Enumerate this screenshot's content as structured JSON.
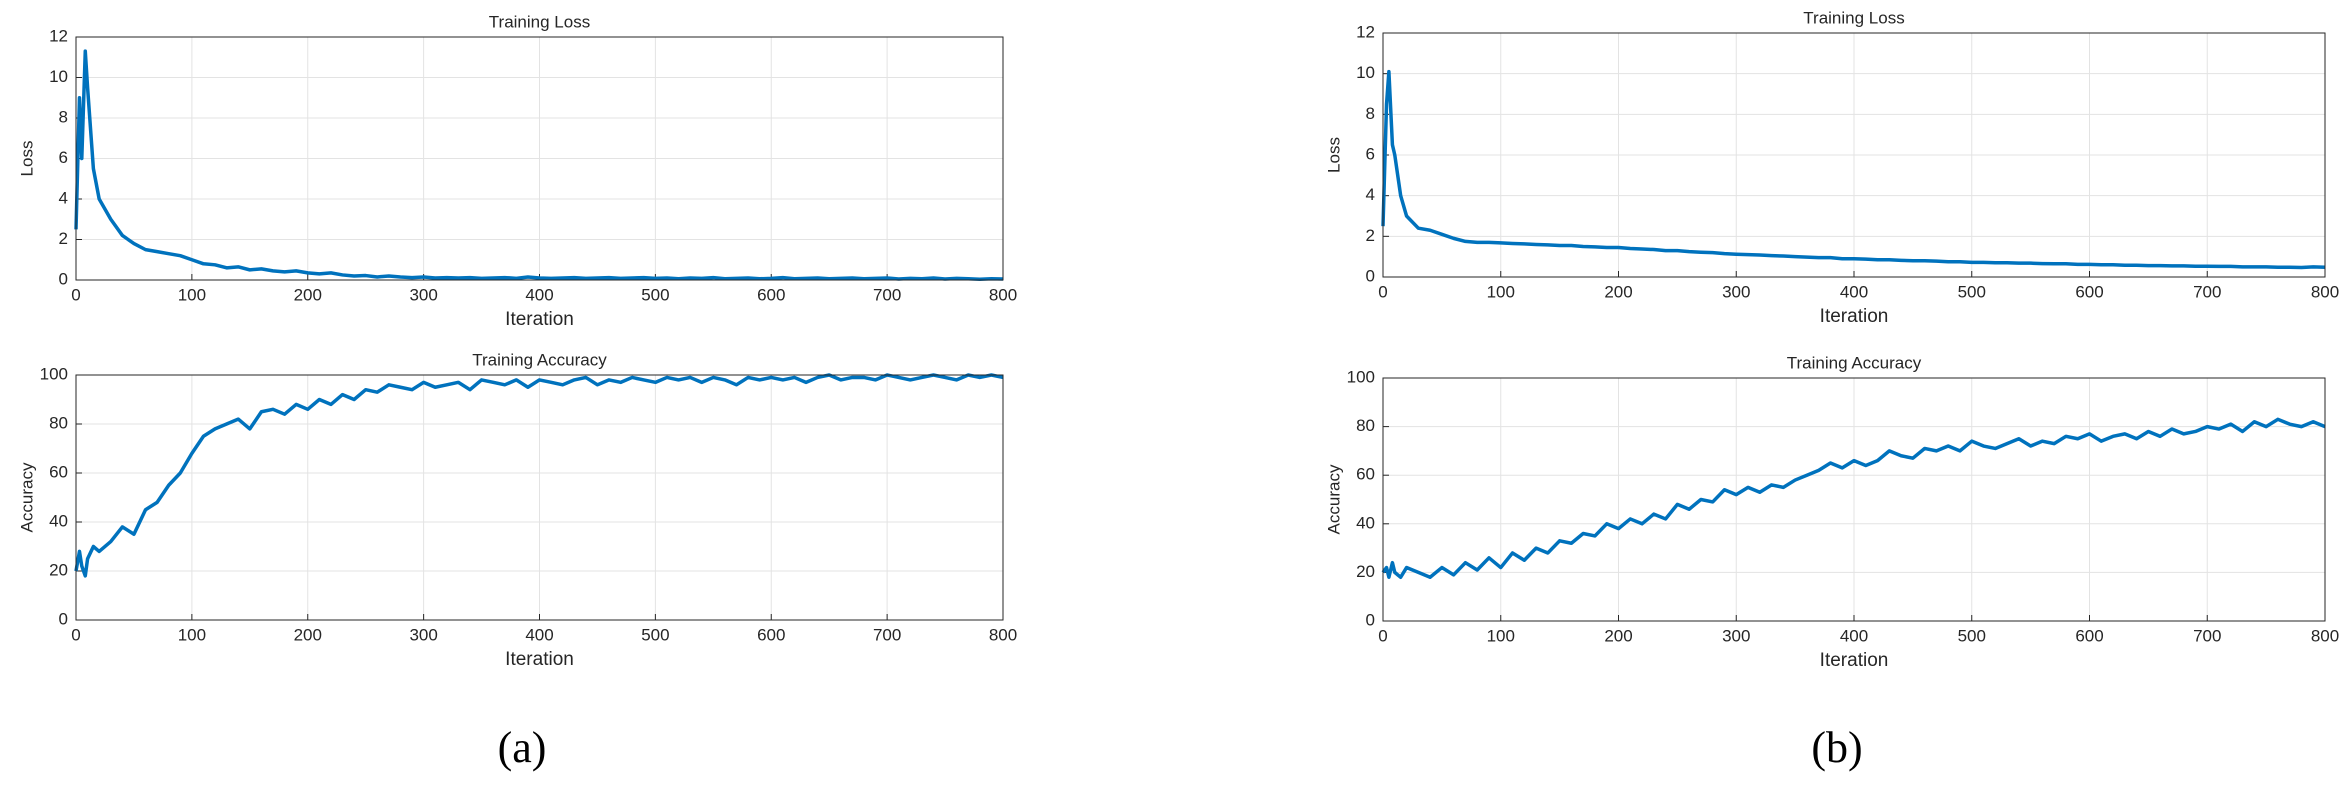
{
  "chart_data": [
    {
      "type": "line",
      "title": "Training Loss",
      "xlabel": "Iteration",
      "ylabel": "Loss",
      "xlim": [
        0,
        800
      ],
      "xticks": [
        0,
        100,
        200,
        300,
        400,
        500,
        600,
        700,
        800
      ],
      "ylim": [
        0,
        12
      ],
      "yticks": [
        0,
        2,
        4,
        6,
        8,
        10,
        12
      ],
      "grid": true,
      "series": [
        {
          "color": "#0072bd",
          "x": [
            0,
            3,
            5,
            8,
            10,
            15,
            20,
            30,
            40,
            50,
            60,
            70,
            80,
            90,
            100,
            110,
            120,
            130,
            140,
            150,
            160,
            170,
            180,
            190,
            200,
            210,
            220,
            230,
            240,
            250,
            260,
            270,
            280,
            290,
            300,
            310,
            320,
            330,
            340,
            350,
            360,
            370,
            380,
            390,
            400,
            410,
            420,
            430,
            440,
            450,
            460,
            470,
            480,
            490,
            500,
            510,
            520,
            530,
            540,
            550,
            560,
            570,
            580,
            590,
            600,
            610,
            620,
            630,
            640,
            650,
            660,
            670,
            680,
            690,
            700,
            710,
            720,
            730,
            740,
            750,
            760,
            770,
            780,
            790,
            800
          ],
          "values": [
            2.5,
            9.0,
            6.0,
            11.3,
            9.5,
            5.5,
            4.0,
            3.0,
            2.2,
            1.8,
            1.5,
            1.4,
            1.3,
            1.2,
            1.0,
            0.8,
            0.75,
            0.6,
            0.65,
            0.5,
            0.55,
            0.45,
            0.4,
            0.45,
            0.35,
            0.3,
            0.35,
            0.25,
            0.2,
            0.22,
            0.15,
            0.2,
            0.15,
            0.12,
            0.15,
            0.1,
            0.12,
            0.1,
            0.12,
            0.08,
            0.1,
            0.12,
            0.08,
            0.15,
            0.1,
            0.08,
            0.1,
            0.12,
            0.08,
            0.1,
            0.12,
            0.08,
            0.1,
            0.12,
            0.08,
            0.1,
            0.06,
            0.1,
            0.08,
            0.12,
            0.06,
            0.08,
            0.1,
            0.06,
            0.08,
            0.12,
            0.06,
            0.08,
            0.1,
            0.06,
            0.08,
            0.1,
            0.06,
            0.08,
            0.1,
            0.05,
            0.08,
            0.06,
            0.1,
            0.05,
            0.08,
            0.06,
            0.04,
            0.06,
            0.05
          ]
        }
      ]
    },
    {
      "type": "line",
      "title": "Training Accuracy",
      "xlabel": "Iteration",
      "ylabel": "Accuracy",
      "xlim": [
        0,
        800
      ],
      "xticks": [
        0,
        100,
        200,
        300,
        400,
        500,
        600,
        700,
        800
      ],
      "ylim": [
        0,
        100
      ],
      "yticks": [
        0,
        20,
        40,
        60,
        80,
        100
      ],
      "grid": true,
      "series": [
        {
          "color": "#0072bd",
          "x": [
            0,
            3,
            5,
            8,
            10,
            15,
            20,
            30,
            40,
            50,
            60,
            70,
            80,
            90,
            100,
            110,
            120,
            130,
            140,
            150,
            160,
            170,
            180,
            190,
            200,
            210,
            220,
            230,
            240,
            250,
            260,
            270,
            280,
            290,
            300,
            310,
            320,
            330,
            340,
            350,
            360,
            370,
            380,
            390,
            400,
            410,
            420,
            430,
            440,
            450,
            460,
            470,
            480,
            490,
            500,
            510,
            520,
            530,
            540,
            550,
            560,
            570,
            580,
            590,
            600,
            610,
            620,
            630,
            640,
            650,
            660,
            670,
            680,
            690,
            700,
            710,
            720,
            730,
            740,
            750,
            760,
            770,
            780,
            790,
            800
          ],
          "values": [
            20,
            28,
            22,
            18,
            25,
            30,
            28,
            32,
            38,
            35,
            45,
            48,
            55,
            60,
            68,
            75,
            78,
            80,
            82,
            78,
            85,
            86,
            84,
            88,
            86,
            90,
            88,
            92,
            90,
            94,
            93,
            96,
            95,
            94,
            97,
            95,
            96,
            97,
            94,
            98,
            97,
            96,
            98,
            95,
            98,
            97,
            96,
            98,
            99,
            96,
            98,
            97,
            99,
            98,
            97,
            99,
            98,
            99,
            97,
            99,
            98,
            96,
            99,
            98,
            99,
            98,
            99,
            97,
            99,
            100,
            98,
            99,
            99,
            98,
            100,
            99,
            98,
            99,
            100,
            99,
            98,
            100,
            99,
            100,
            99
          ]
        }
      ]
    },
    {
      "type": "line",
      "title": "Training Loss",
      "xlabel": "Iteration",
      "ylabel": "Loss",
      "xlim": [
        0,
        800
      ],
      "xticks": [
        0,
        100,
        200,
        300,
        400,
        500,
        600,
        700,
        800
      ],
      "ylim": [
        0,
        12
      ],
      "yticks": [
        0,
        2,
        4,
        6,
        8,
        10,
        12
      ],
      "grid": true,
      "series": [
        {
          "color": "#0072bd",
          "x": [
            0,
            3,
            5,
            8,
            10,
            15,
            20,
            30,
            40,
            50,
            60,
            70,
            80,
            90,
            100,
            110,
            120,
            130,
            140,
            150,
            160,
            170,
            180,
            190,
            200,
            210,
            220,
            230,
            240,
            250,
            260,
            270,
            280,
            290,
            300,
            310,
            320,
            330,
            340,
            350,
            360,
            370,
            380,
            390,
            400,
            410,
            420,
            430,
            440,
            450,
            460,
            470,
            480,
            490,
            500,
            510,
            520,
            530,
            540,
            550,
            560,
            570,
            580,
            590,
            600,
            610,
            620,
            630,
            640,
            650,
            660,
            670,
            680,
            690,
            700,
            710,
            720,
            730,
            740,
            750,
            760,
            770,
            780,
            790,
            800
          ],
          "values": [
            2.5,
            8.5,
            10.1,
            6.5,
            6.0,
            4.0,
            3.0,
            2.4,
            2.3,
            2.1,
            1.9,
            1.75,
            1.7,
            1.7,
            1.68,
            1.65,
            1.63,
            1.6,
            1.58,
            1.55,
            1.55,
            1.5,
            1.48,
            1.45,
            1.45,
            1.4,
            1.38,
            1.35,
            1.3,
            1.3,
            1.25,
            1.22,
            1.2,
            1.15,
            1.12,
            1.1,
            1.08,
            1.05,
            1.03,
            1.0,
            0.98,
            0.95,
            0.95,
            0.9,
            0.9,
            0.88,
            0.85,
            0.85,
            0.82,
            0.8,
            0.8,
            0.78,
            0.75,
            0.75,
            0.72,
            0.72,
            0.7,
            0.7,
            0.68,
            0.68,
            0.66,
            0.65,
            0.65,
            0.62,
            0.62,
            0.6,
            0.6,
            0.58,
            0.58,
            0.56,
            0.56,
            0.55,
            0.55,
            0.53,
            0.53,
            0.52,
            0.52,
            0.5,
            0.5,
            0.5,
            0.48,
            0.48,
            0.47,
            0.5,
            0.48
          ]
        }
      ]
    },
    {
      "type": "line",
      "title": "Training Accuracy",
      "xlabel": "Iteration",
      "ylabel": "Accuracy",
      "xlim": [
        0,
        800
      ],
      "xticks": [
        0,
        100,
        200,
        300,
        400,
        500,
        600,
        700,
        800
      ],
      "ylim": [
        0,
        100
      ],
      "yticks": [
        0,
        20,
        40,
        60,
        80,
        100
      ],
      "grid": true,
      "series": [
        {
          "color": "#0072bd",
          "x": [
            0,
            3,
            5,
            8,
            10,
            15,
            20,
            30,
            40,
            50,
            60,
            70,
            80,
            90,
            100,
            110,
            120,
            130,
            140,
            150,
            160,
            170,
            180,
            190,
            200,
            210,
            220,
            230,
            240,
            250,
            260,
            270,
            280,
            290,
            300,
            310,
            320,
            330,
            340,
            350,
            360,
            370,
            380,
            390,
            400,
            410,
            420,
            430,
            440,
            450,
            460,
            470,
            480,
            490,
            500,
            510,
            520,
            530,
            540,
            550,
            560,
            570,
            580,
            590,
            600,
            610,
            620,
            630,
            640,
            650,
            660,
            670,
            680,
            690,
            700,
            710,
            720,
            730,
            740,
            750,
            760,
            770,
            780,
            790,
            800
          ],
          "values": [
            20,
            22,
            18,
            24,
            20,
            18,
            22,
            20,
            18,
            22,
            19,
            24,
            21,
            26,
            22,
            28,
            25,
            30,
            28,
            33,
            32,
            36,
            35,
            40,
            38,
            42,
            40,
            44,
            42,
            48,
            46,
            50,
            49,
            54,
            52,
            55,
            53,
            56,
            55,
            58,
            60,
            62,
            65,
            63,
            66,
            64,
            66,
            70,
            68,
            67,
            71,
            70,
            72,
            70,
            74,
            72,
            71,
            73,
            75,
            72,
            74,
            73,
            76,
            75,
            77,
            74,
            76,
            77,
            75,
            78,
            76,
            79,
            77,
            78,
            80,
            79,
            81,
            78,
            82,
            80,
            83,
            81,
            80,
            82,
            80
          ]
        }
      ]
    }
  ],
  "captions": [
    "(a)",
    "(b)"
  ]
}
